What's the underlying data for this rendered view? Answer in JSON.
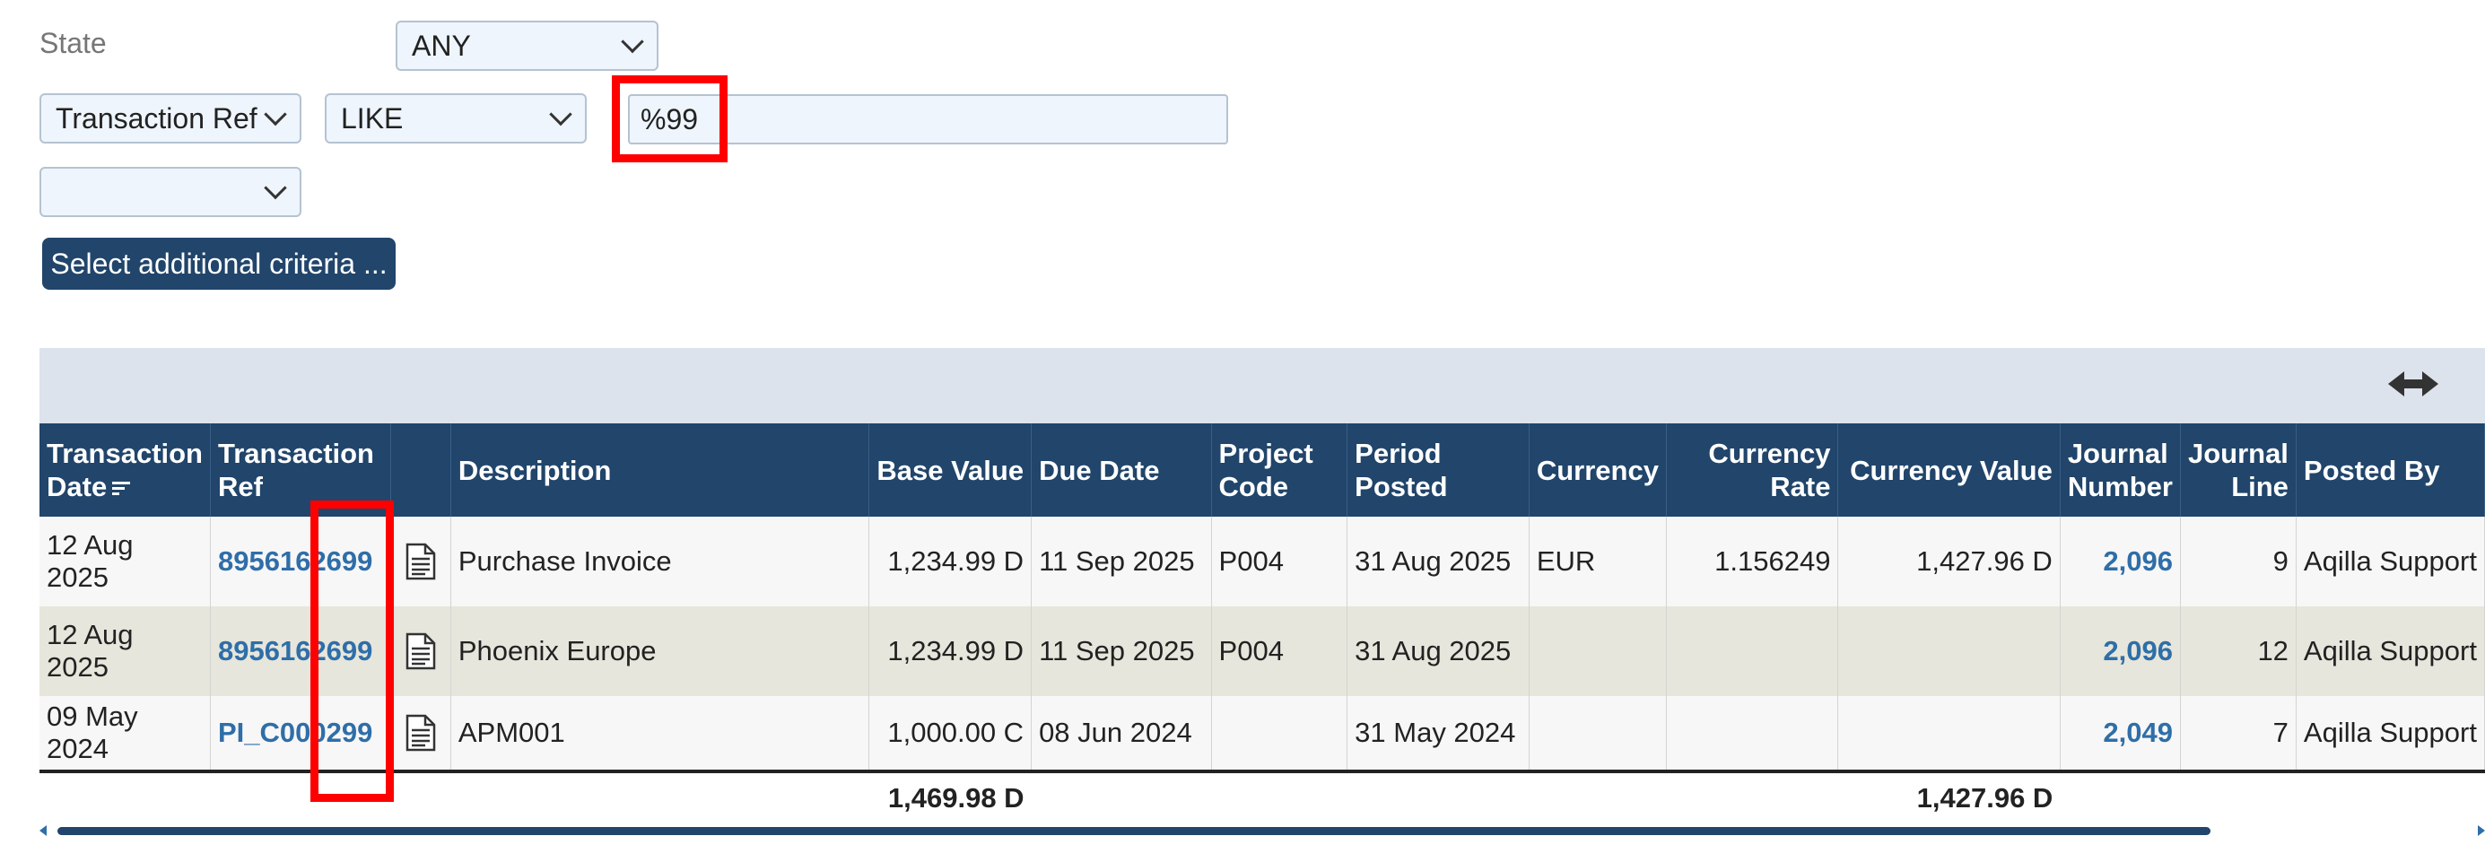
{
  "filters": {
    "state_label": "State",
    "state_value": "ANY",
    "field_value": "Transaction Ref",
    "operator_value": "LIKE",
    "search_value": "%99",
    "extra_value": "",
    "criteria_button": "Select additional criteria ..."
  },
  "grid": {
    "headers": {
      "txn_date_1": "Transaction",
      "txn_date_2": "Date",
      "txn_ref_1": "Transaction",
      "txn_ref_2": "Ref",
      "description": "Description",
      "base_value": "Base Value",
      "due_date": "Due Date",
      "project_1": "Project",
      "project_2": "Code",
      "period_1": "Period",
      "period_2": "Posted",
      "currency": "Currency",
      "rate_1": "Currency",
      "rate_2": "Rate",
      "currency_value": "Currency Value",
      "journal_num_1": "Journal",
      "journal_num_2": "Number",
      "journal_line_1": "Journal",
      "journal_line_2": "Line",
      "posted_by": "Posted By"
    },
    "rows": [
      {
        "date": "12 Aug 2025",
        "ref": "8956162699",
        "desc": "Purchase Invoice",
        "base": "1,234.99 D",
        "due": "11 Sep 2025",
        "project": "P004",
        "period": "31 Aug 2025",
        "currency": "EUR",
        "rate": "1.156249",
        "cur_value": "1,427.96 D",
        "journal": "2,096",
        "line": "9",
        "posted_by": "Aqilla Support"
      },
      {
        "date": "12 Aug 2025",
        "ref": "8956162699",
        "desc": "Phoenix Europe",
        "base": "1,234.99 D",
        "due": "11 Sep 2025",
        "project": "P004",
        "period": "31 Aug 2025",
        "currency": "",
        "rate": "",
        "cur_value": "",
        "journal": "2,096",
        "line": "12",
        "posted_by": "Aqilla Support"
      },
      {
        "date": "09 May 2024",
        "ref": "PI_C000299",
        "desc": "APM001",
        "base": "1,000.00 C",
        "due": "08 Jun 2024",
        "project": "",
        "period": "31 May 2024",
        "currency": "",
        "rate": "",
        "cur_value": "",
        "journal": "2,049",
        "line": "7",
        "posted_by": "Aqilla Support"
      }
    ],
    "totals": {
      "base": "1,469.98 D",
      "cur_value": "1,427.96 D"
    }
  },
  "icons": [
    "chevron-down-icon",
    "sort-icon",
    "document-icon",
    "resize-columns-icon"
  ],
  "colors": {
    "header_bg": "#21456b",
    "link": "#2f6ea8",
    "highlight": "#ff0000",
    "toolbar_bg": "#dde3ec"
  }
}
